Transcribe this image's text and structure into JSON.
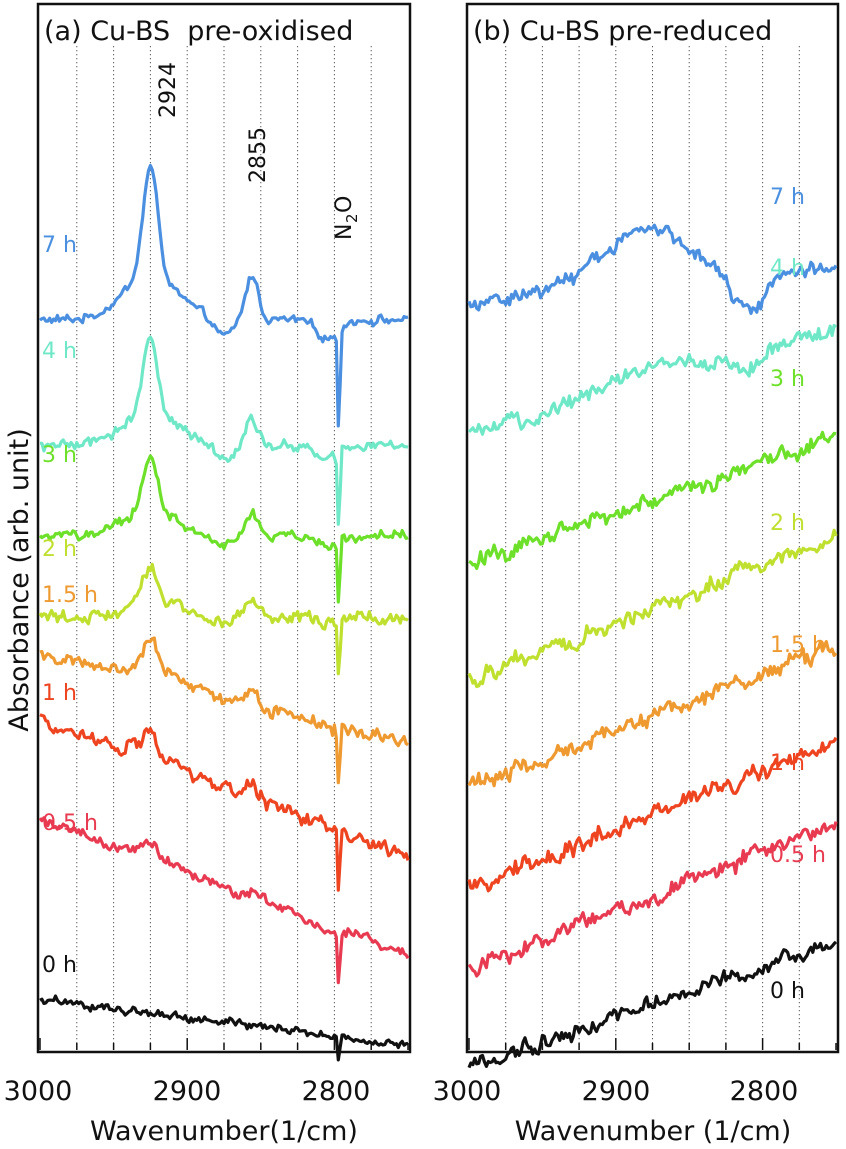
{
  "figure": {
    "ylabel": "Absorbance (arb. unit)"
  },
  "chart_data": [
    {
      "type": "line",
      "title": "(a) Cu-BS  pre-oxidised",
      "xlabel": "Wavenumber(1/cm)",
      "ylabel": "Absorbance (arb. unit)",
      "x_reversed": true,
      "xlim": [
        3000,
        2750
      ],
      "xticks": [
        "3000",
        "2900",
        "2800"
      ],
      "minor_grid_step": 25,
      "grid": "vertical dotted",
      "annotations": [
        {
          "text": "2924",
          "x": 2924
        },
        {
          "text": "2855",
          "x": 2855
        },
        {
          "text": "N",
          "sub": "2",
          "post": "O",
          "x": 2797
        }
      ],
      "series": [
        {
          "name": "7 h",
          "color": "#4a8fe0",
          "level": 0.8,
          "peak2924": 1.0,
          "peak2855": 0.45,
          "dip": 0.88,
          "slope": 0.0,
          "noise": 0.5
        },
        {
          "name": "4 h",
          "color": "#6fe8c8",
          "level": 0.66,
          "peak2924": 0.72,
          "peak2855": 0.3,
          "dip": 0.66,
          "slope": 0.0,
          "noise": 0.6
        },
        {
          "name": "3 h",
          "color": "#6de02a",
          "level": 0.56,
          "peak2924": 0.52,
          "peak2855": 0.22,
          "dip": 0.56,
          "slope": 0.0,
          "noise": 0.6
        },
        {
          "name": "2 h",
          "color": "#bfe02e",
          "level": 0.47,
          "peak2924": 0.34,
          "peak2855": 0.16,
          "dip": 0.52,
          "slope": 0.0,
          "noise": 0.7
        },
        {
          "name": "1.5 h",
          "color": "#ee9a30",
          "level": 0.38,
          "peak2924": 0.26,
          "peak2855": 0.14,
          "dip": 0.52,
          "slope": 0.1,
          "noise": 0.7
        },
        {
          "name": "1 h",
          "color": "#ee4420",
          "level": 0.28,
          "peak2924": 0.2,
          "peak2855": 0.12,
          "dip": 0.52,
          "slope": 0.15,
          "noise": 0.9
        },
        {
          "name": "0.5 h",
          "color": "#e83a50",
          "level": 0.17,
          "peak2924": 0.12,
          "peak2855": 0.06,
          "dip": 0.44,
          "slope": 0.15,
          "noise": 0.6
        },
        {
          "name": "0 h",
          "color": "#111111",
          "level": 0.02,
          "peak2924": 0.0,
          "peak2855": 0.0,
          "dip": 0.22,
          "slope": 0.05,
          "noise": 0.5
        }
      ]
    },
    {
      "type": "line",
      "title": "(b) Cu-BS pre-reduced",
      "xlabel": "Wavenumber (1/cm)",
      "x_reversed": true,
      "xlim": [
        3000,
        2750
      ],
      "xticks": [
        "3000",
        "2900",
        "2800"
      ],
      "minor_grid_step": 25,
      "grid": "vertical dotted",
      "series": [
        {
          "name": "7 h",
          "color": "#4a8fe0",
          "level": 0.84,
          "hump": 0.06,
          "slope": -0.02,
          "noise": 0.9
        },
        {
          "name": "4 h",
          "color": "#6fe8c8",
          "level": 0.73,
          "hump": 0.02,
          "slope": -0.06,
          "noise": 0.9
        },
        {
          "name": "3 h",
          "color": "#6de02a",
          "level": 0.6,
          "hump": 0.0,
          "slope": -0.07,
          "noise": 1.0
        },
        {
          "name": "2 h",
          "color": "#bfe02e",
          "level": 0.48,
          "hump": 0.0,
          "slope": -0.08,
          "noise": 1.0
        },
        {
          "name": "1.5 h",
          "color": "#ee9a30",
          "level": 0.36,
          "hump": 0.0,
          "slope": -0.08,
          "noise": 1.0
        },
        {
          "name": "1 h",
          "color": "#ee4420",
          "level": 0.25,
          "hump": 0.0,
          "slope": -0.08,
          "noise": 1.0
        },
        {
          "name": "0.5 h",
          "color": "#e83a50",
          "level": 0.16,
          "hump": 0.0,
          "slope": -0.08,
          "noise": 1.0
        },
        {
          "name": "0 h",
          "color": "#111111",
          "level": 0.04,
          "hump": 0.0,
          "slope": -0.07,
          "noise": 0.9
        }
      ]
    }
  ]
}
